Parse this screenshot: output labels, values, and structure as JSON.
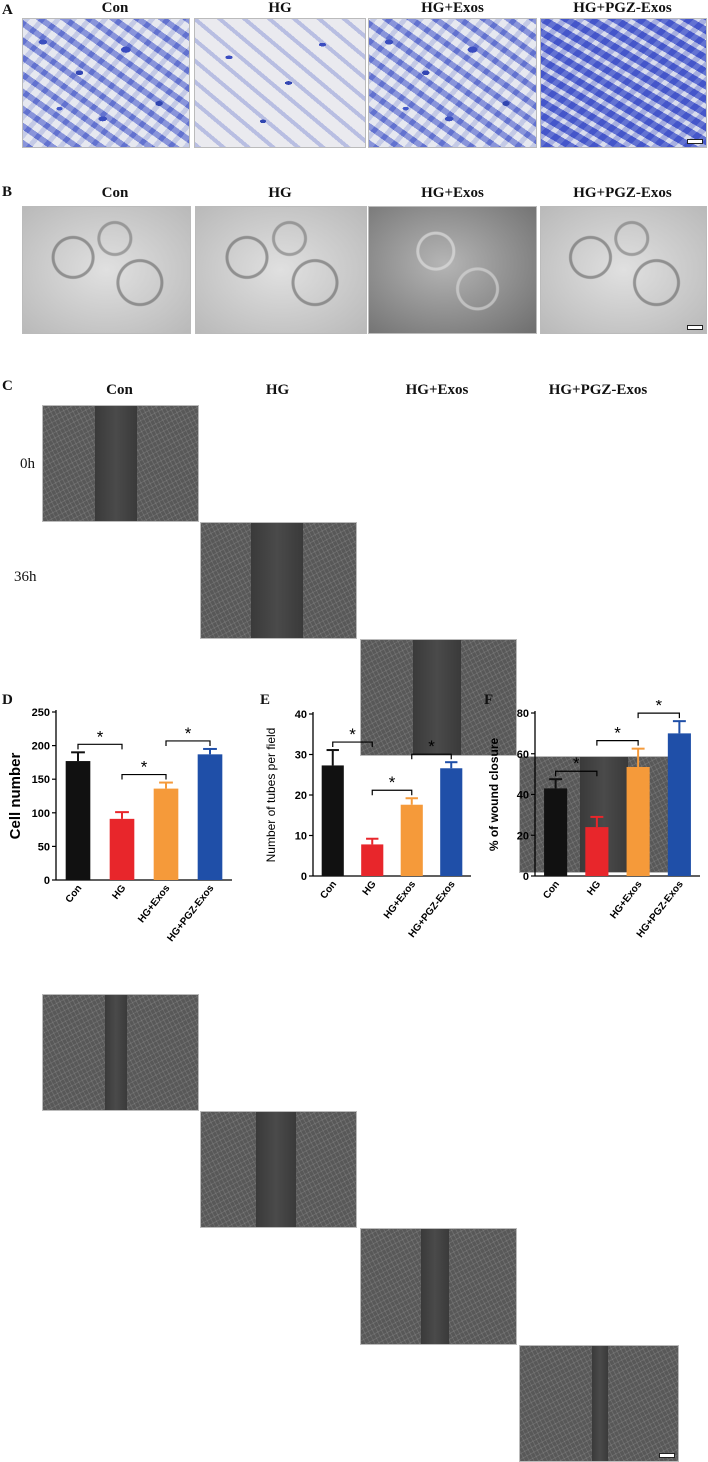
{
  "panel_labels": {
    "a": "A",
    "b": "B",
    "c": "C",
    "d": "D",
    "e": "E",
    "f": "F"
  },
  "groups": [
    "Con",
    "HG",
    "HG+Exos",
    "HG+PGZ-Exos"
  ],
  "time_labels": [
    "0h",
    "36h"
  ],
  "significance_mark": "*",
  "colors": {
    "Con": "#111111",
    "HG": "#e8262b",
    "HG+Exos": "#f59a3a",
    "HG+PGZ-Exos": "#1f4fa8"
  },
  "chart_data": [
    {
      "type": "bar",
      "panel": "D",
      "categories": [
        "Con",
        "HG",
        "HG+Exos",
        "HG+PGZ-Exos"
      ],
      "values": [
        177,
        91,
        136,
        187
      ],
      "errors": [
        13,
        10,
        9,
        8
      ],
      "ylabel": "Cell number",
      "ylim": [
        0,
        250
      ],
      "yticks": [
        0,
        50,
        100,
        150,
        200,
        250
      ],
      "significance": [
        [
          0,
          1
        ],
        [
          1,
          2
        ],
        [
          2,
          3
        ]
      ]
    },
    {
      "type": "bar",
      "panel": "E",
      "categories": [
        "Con",
        "HG",
        "HG+Exos",
        "HG+PGZ-Exos"
      ],
      "values": [
        27.3,
        7.8,
        17.6,
        26.6
      ],
      "errors": [
        3.8,
        1.4,
        1.6,
        1.5
      ],
      "ylabel": "Number of tubes per field",
      "ylim": [
        0,
        40
      ],
      "yticks": [
        0,
        10,
        20,
        30,
        40
      ],
      "significance": [
        [
          0,
          1
        ],
        [
          1,
          2
        ],
        [
          2,
          3
        ]
      ]
    },
    {
      "type": "bar",
      "panel": "F",
      "categories": [
        "Con",
        "HG",
        "HG+Exos",
        "HG+PGZ-Exos"
      ],
      "values": [
        43,
        24,
        53.5,
        70
      ],
      "errors": [
        4.5,
        5,
        9,
        6
      ],
      "ylabel": "% of wound closure",
      "ylim": [
        0,
        80
      ],
      "yticks": [
        0,
        20,
        40,
        60,
        80
      ],
      "significance": [
        [
          0,
          1
        ],
        [
          1,
          2
        ],
        [
          2,
          3
        ]
      ]
    }
  ]
}
